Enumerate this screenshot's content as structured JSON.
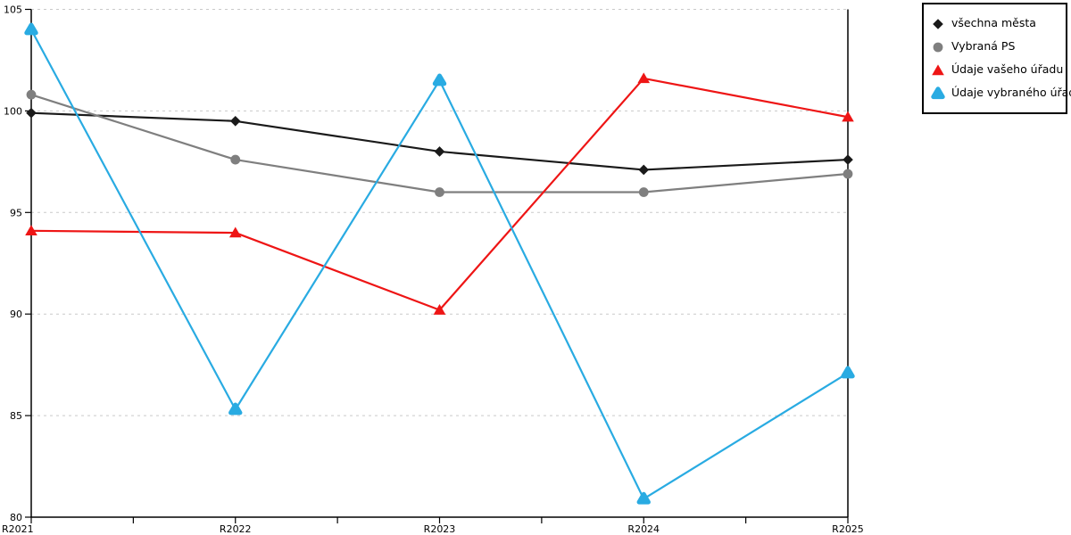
{
  "chart_data": {
    "type": "line",
    "title": "",
    "xlabel": "",
    "ylabel": "",
    "categories": [
      "R2021",
      "R2022",
      "R2023",
      "R2024",
      "R2025"
    ],
    "series": [
      {
        "name": "všechna města",
        "color": "#1a1a1a",
        "marker": "diamond",
        "values": [
          99.9,
          99.5,
          98.0,
          97.1,
          97.6
        ]
      },
      {
        "name": "Vybraná PS",
        "color": "#7f7f7f",
        "marker": "circle",
        "values": [
          100.8,
          97.6,
          96.0,
          96.0,
          96.9
        ]
      },
      {
        "name": "Údaje vašeho úřadu",
        "color": "#ee1515",
        "marker": "triangle",
        "values": [
          94.1,
          94.0,
          90.2,
          101.6,
          99.7
        ]
      },
      {
        "name": "Údaje vybraného úřadu",
        "color": "#29abe2",
        "marker": "triangle-rounded",
        "values": [
          104.0,
          85.3,
          101.5,
          80.9,
          87.1
        ]
      }
    ],
    "ylim": [
      80,
      105
    ],
    "ytick_step": 5,
    "ytick_labels": [
      "80",
      "85",
      "90",
      "95",
      "100",
      "105"
    ],
    "grid": "horizontal-dashed",
    "gridline_color": "#c9c9c9",
    "axis_color": "#000000",
    "legend_position": "top-right"
  }
}
